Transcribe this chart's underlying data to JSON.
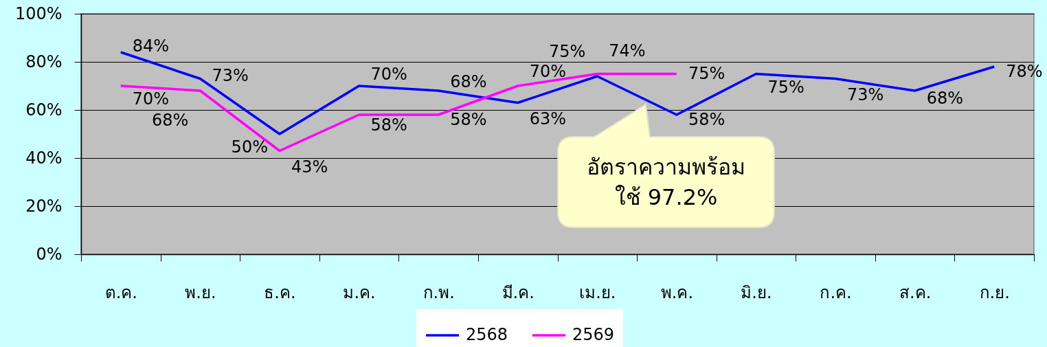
{
  "chart_data": {
    "type": "line",
    "categories": [
      "ต.ค.",
      "พ.ย.",
      "ธ.ค.",
      "ม.ค.",
      "ก.พ.",
      "มี.ค.",
      "เม.ย.",
      "พ.ค.",
      "มิ.ย.",
      "ก.ค.",
      "ส.ค.",
      "ก.ย."
    ],
    "series": [
      {
        "name": "2568",
        "color": "#0000ff",
        "values": [
          84,
          73,
          50,
          70,
          68,
          63,
          74,
          58,
          75,
          73,
          68,
          78
        ],
        "value_labels": [
          "84%",
          "73%",
          "50%",
          "70%",
          "68%",
          "63%",
          "74%",
          "58%",
          "75%",
          "73%",
          "68%",
          "78%"
        ]
      },
      {
        "name": "2569",
        "color": "#ff00ff",
        "values": [
          70,
          68,
          43,
          58,
          58,
          70,
          75,
          75,
          null,
          null,
          null,
          null
        ],
        "value_labels": [
          "70%",
          "68%",
          "43%",
          "58%",
          "58%",
          "70%",
          "75%",
          "75%",
          null,
          null,
          null,
          null
        ]
      }
    ],
    "ylim": [
      0,
      100
    ],
    "yticks": [
      {
        "value": 0,
        "label": "0%"
      },
      {
        "value": 20,
        "label": "20%"
      },
      {
        "value": 40,
        "label": "40%"
      },
      {
        "value": 60,
        "label": "60%"
      },
      {
        "value": 80,
        "label": "80%"
      },
      {
        "value": 100,
        "label": "100%"
      }
    ],
    "grid": "y",
    "legend": "bottom",
    "annotations": [
      "อัตราความพร้อม\nใช้ 97.2%"
    ]
  }
}
